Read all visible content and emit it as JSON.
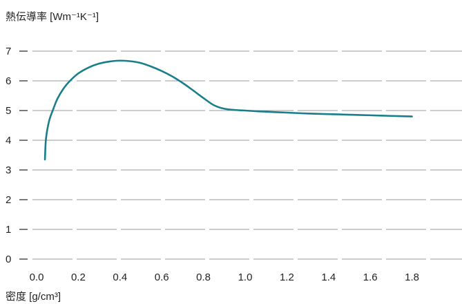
{
  "chart_data": {
    "type": "line",
    "ylabel": "熱伝導率 [Wm⁻¹K⁻¹]",
    "xlabel": "密度 [g/cm³]",
    "xlim": [
      0.0,
      2.0
    ],
    "ylim": [
      0,
      7
    ],
    "x_ticks": [
      "0.0",
      "0.2",
      "0.4",
      "0.6",
      "0.8",
      "1.0",
      "1.2",
      "1.4",
      "1.6",
      "1.8"
    ],
    "y_ticks": [
      "0",
      "1",
      "2",
      "3",
      "4",
      "5",
      "6",
      "7"
    ],
    "grid": "horizontal dashed",
    "legend": "none",
    "series": [
      {
        "color": "#187e8a",
        "x": [
          0.04,
          0.045,
          0.06,
          0.08,
          0.1,
          0.13,
          0.16,
          0.2,
          0.25,
          0.3,
          0.35,
          0.4,
          0.45,
          0.5,
          0.55,
          0.6,
          0.65,
          0.7,
          0.75,
          0.8,
          0.85,
          0.9,
          0.95,
          1.0,
          1.1,
          1.2,
          1.3,
          1.4,
          1.5,
          1.6,
          1.7,
          1.8
        ],
        "y": [
          3.35,
          4.05,
          4.65,
          5.05,
          5.4,
          5.75,
          6.0,
          6.25,
          6.45,
          6.58,
          6.65,
          6.68,
          6.66,
          6.6,
          6.48,
          6.33,
          6.15,
          5.93,
          5.68,
          5.42,
          5.18,
          5.06,
          5.02,
          5.0,
          4.96,
          4.93,
          4.9,
          4.88,
          4.86,
          4.84,
          4.82,
          4.8
        ]
      }
    ]
  }
}
